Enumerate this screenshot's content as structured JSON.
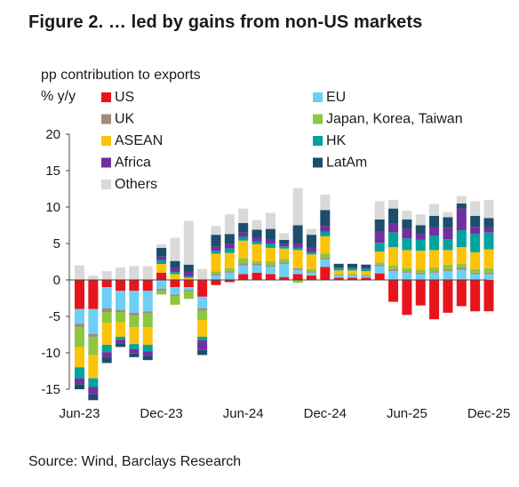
{
  "title": "Figure 2. … led by gains from non-US markets",
  "y_unit_line1": "pp contribution to exports",
  "y_unit_line2": "% y/y",
  "source": "Source: Wind, Barclays Research",
  "chart_data": {
    "type": "bar",
    "stacked": true,
    "ylim": [
      -15,
      20
    ],
    "yticks": [
      -15,
      -10,
      -5,
      0,
      5,
      10,
      15,
      20
    ],
    "xtick_labels": [
      "Jun-23",
      "Dec-23",
      "Jun-24",
      "Dec-24",
      "Jun-25",
      "Dec-25"
    ],
    "xtick_indices": [
      0,
      6,
      12,
      18,
      24,
      30
    ],
    "categories": [
      "Jun-23",
      "Jul-23",
      "Aug-23",
      "Sep-23",
      "Oct-23",
      "Nov-23",
      "Dec-23",
      "Jan-24",
      "Feb-24",
      "Mar-24",
      "Apr-24",
      "May-24",
      "Jun-24",
      "Jul-24",
      "Aug-24",
      "Sep-24",
      "Oct-24",
      "Nov-24",
      "Dec-24",
      "Jan-25",
      "Feb-25",
      "Mar-25",
      "Apr-25",
      "May-25",
      "Jun-25",
      "Jul-25",
      "Aug-25",
      "Sep-25",
      "Oct-25",
      "Nov-25",
      "Dec-25"
    ],
    "grid": false,
    "legend_position": "top-left, two columns",
    "series": [
      {
        "name": "US",
        "color": "#e8141b",
        "values": [
          -4,
          -4,
          -1,
          -1.5,
          -1.5,
          -1.5,
          1,
          -1,
          -1,
          -2.3,
          -0.7,
          -0.3,
          0.8,
          1,
          0.8,
          0.4,
          0.8,
          0.6,
          1.8,
          0.3,
          0.3,
          0.3,
          0.9,
          -3,
          -4.8,
          -3.5,
          -5.4,
          -4.5,
          -3.6,
          -4.3,
          -4.3
        ]
      },
      {
        "name": "EU",
        "color": "#6ecff6",
        "values": [
          -2,
          -3.4,
          -2.9,
          -2.6,
          -3,
          -2.8,
          -1.2,
          -1,
          -0.4,
          -1.6,
          0.6,
          1,
          1.2,
          1,
          1,
          1.8,
          0.6,
          0.4,
          1,
          0.3,
          0.3,
          0.2,
          1,
          1.2,
          1,
          0.8,
          1,
          1.2,
          1.4,
          0.8,
          0.8
        ]
      },
      {
        "name": "UK",
        "color": "#a08c7c",
        "values": [
          -0.5,
          -0.4,
          -0.5,
          -0.3,
          -0.4,
          -0.3,
          -0.3,
          -0.2,
          -0.2,
          -0.3,
          0.2,
          0.2,
          0.3,
          0.2,
          0.2,
          0.2,
          0.2,
          0.2,
          0.2,
          0.1,
          0.1,
          0.1,
          0.2,
          0.3,
          0.2,
          0.2,
          0.2,
          0.2,
          0.3,
          0.2,
          0.2
        ]
      },
      {
        "name": "Japan, Korea, Taiwan",
        "color": "#8dc63f",
        "values": [
          -2.7,
          -2.5,
          -1.5,
          -1.4,
          -1.6,
          -1.9,
          -0.5,
          -1.2,
          -1,
          -1.3,
          0.4,
          0.4,
          0.7,
          0.4,
          0.6,
          0.5,
          -0.4,
          0.3,
          0.6,
          0.1,
          0.1,
          0.1,
          0.3,
          0.5,
          0.4,
          0.4,
          0.5,
          0.7,
          0.5,
          0.5,
          0.6
        ]
      },
      {
        "name": "ASEAN",
        "color": "#fcc30b",
        "values": [
          -2.8,
          -3.2,
          -3,
          -2,
          -2.3,
          -2.4,
          1.2,
          0.8,
          0.3,
          -2.3,
          2.4,
          2.1,
          2.4,
          2.3,
          1.8,
          1.4,
          2.5,
          2,
          2.4,
          0.5,
          0.5,
          0.5,
          1.5,
          2.5,
          2.5,
          2.6,
          2.4,
          2,
          2.3,
          2.3,
          2.6
        ]
      },
      {
        "name": "HK",
        "color": "#00a39e",
        "values": [
          -1.5,
          -1.2,
          -1,
          -0.4,
          -0.7,
          -0.9,
          0.5,
          0.3,
          0.2,
          -0.5,
          0.4,
          0.6,
          0.5,
          0.4,
          0.6,
          0.3,
          0.3,
          0.3,
          0.6,
          0.3,
          0.3,
          0.3,
          1.2,
          2,
          1.6,
          1.5,
          2,
          1.5,
          2.3,
          2.5,
          2.3
        ]
      },
      {
        "name": "Africa",
        "color": "#7030a0",
        "values": [
          -0.8,
          -1,
          -0.7,
          -0.5,
          -0.6,
          -0.6,
          0.5,
          0.5,
          0.6,
          -1.3,
          0.6,
          0.6,
          0.6,
          0.5,
          0.5,
          0.3,
          0.6,
          0.6,
          0.8,
          0.1,
          0.1,
          0.1,
          1.5,
          1.3,
          1.3,
          0.8,
          1.1,
          1.5,
          3,
          1,
          0.7
        ]
      },
      {
        "name": "LatAm",
        "color": "#1e4d6b",
        "values": [
          -0.7,
          -0.8,
          -0.8,
          -0.5,
          -0.5,
          -0.6,
          1.2,
          1,
          1,
          -0.7,
          1.6,
          1.4,
          1.3,
          1.1,
          1.5,
          0.6,
          2.5,
          1.8,
          2.2,
          0.5,
          0.5,
          0.5,
          1.7,
          2,
          1.3,
          1.2,
          1.6,
          1.5,
          0.7,
          1.5,
          1.3
        ]
      },
      {
        "name": "Others",
        "color": "#d9d9d9",
        "values": [
          2,
          0.6,
          1.2,
          1.7,
          1.9,
          1.9,
          0.5,
          3.2,
          6,
          1.5,
          1.2,
          2.7,
          2,
          1.3,
          2.2,
          0.9,
          5.1,
          0.8,
          2.1,
          0.1,
          0.1,
          0.1,
          2.5,
          1.2,
          1.2,
          1.5,
          1.6,
          0.7,
          1,
          2,
          2.5
        ]
      }
    ]
  }
}
